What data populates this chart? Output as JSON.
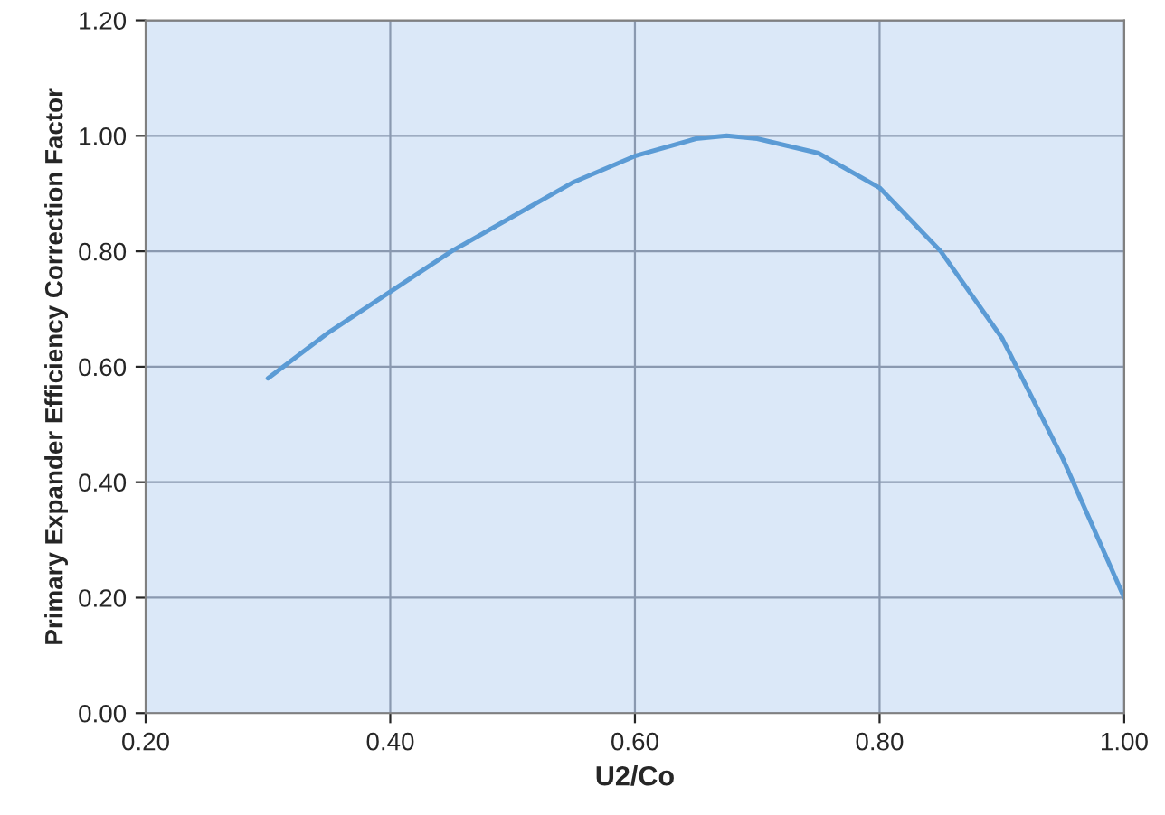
{
  "chart_data": {
    "type": "line",
    "xlabel": "U2/Co",
    "ylabel": "Primary Expander Efficiency Correction Factor",
    "x": [
      0.3,
      0.35,
      0.4,
      0.45,
      0.5,
      0.55,
      0.6,
      0.65,
      0.675,
      0.7,
      0.75,
      0.8,
      0.85,
      0.9,
      0.95,
      1.0
    ],
    "series": [
      {
        "color": "#5b9bd5",
        "values": [
          0.58,
          0.66,
          0.73,
          0.8,
          0.86,
          0.92,
          0.965,
          0.995,
          1.0,
          0.995,
          0.97,
          0.91,
          0.8,
          0.65,
          0.44,
          0.2
        ]
      }
    ],
    "xlim": [
      0.2,
      1.0
    ],
    "ylim": [
      0.0,
      1.2
    ],
    "xticks": [
      {
        "value": 0.2,
        "label": "0.20"
      },
      {
        "value": 0.4,
        "label": "0.40"
      },
      {
        "value": 0.6,
        "label": "0.60"
      },
      {
        "value": 0.8,
        "label": "0.80"
      },
      {
        "value": 1.0,
        "label": "1.00"
      }
    ],
    "yticks": [
      {
        "value": 0.0,
        "label": "0.00"
      },
      {
        "value": 0.2,
        "label": "0.20"
      },
      {
        "value": 0.4,
        "label": "0.40"
      },
      {
        "value": 0.6,
        "label": "0.60"
      },
      {
        "value": 0.8,
        "label": "0.80"
      },
      {
        "value": 1.0,
        "label": "1.00"
      },
      {
        "value": 1.2,
        "label": "1.20"
      }
    ],
    "grid": true,
    "marker": "none",
    "line_style": "solid",
    "legend": false
  }
}
